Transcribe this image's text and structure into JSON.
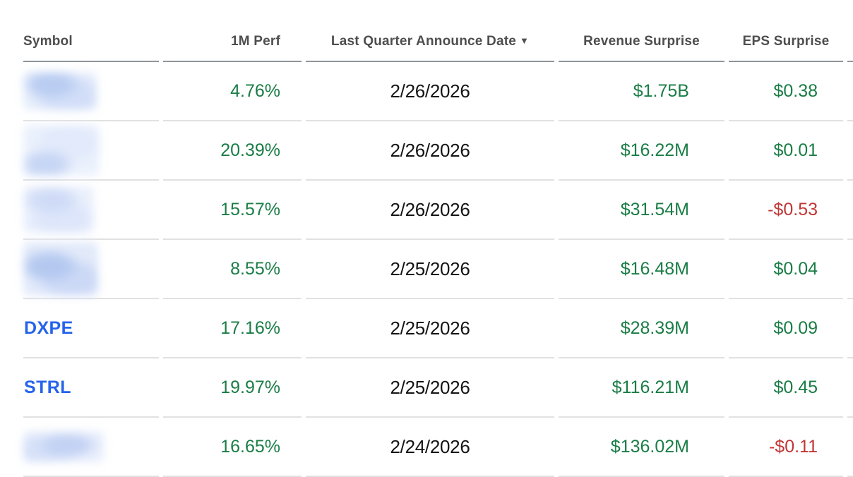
{
  "table": {
    "columns": [
      {
        "id": "symbol",
        "label": "Symbol"
      },
      {
        "id": "perf-1m",
        "label": "1M Perf"
      },
      {
        "id": "announce-date",
        "label": "Last Quarter Announce Date",
        "sort": "desc",
        "sort_icon": "▼"
      },
      {
        "id": "revenue-surprise",
        "label": "Revenue Surprise"
      },
      {
        "id": "eps-surprise",
        "label": "EPS Surprise"
      }
    ],
    "rows": [
      {
        "symbol": "",
        "symbol_blurred": true,
        "perf_1m": "4.76%",
        "announce_date": "2/26/2026",
        "revenue_surprise": "$1.75B",
        "eps_surprise": "$0.38",
        "eps_trend": "up"
      },
      {
        "symbol": "",
        "symbol_blurred": true,
        "perf_1m": "20.39%",
        "announce_date": "2/26/2026",
        "revenue_surprise": "$16.22M",
        "eps_surprise": "$0.01",
        "eps_trend": "up"
      },
      {
        "symbol": "",
        "symbol_blurred": true,
        "perf_1m": "15.57%",
        "announce_date": "2/26/2026",
        "revenue_surprise": "$31.54M",
        "eps_surprise": "-$0.53",
        "eps_trend": "down"
      },
      {
        "symbol": "",
        "symbol_blurred": true,
        "perf_1m": "8.55%",
        "announce_date": "2/25/2026",
        "revenue_surprise": "$16.48M",
        "eps_surprise": "$0.04",
        "eps_trend": "up"
      },
      {
        "symbol": "DXPE",
        "symbol_blurred": false,
        "perf_1m": "17.16%",
        "announce_date": "2/25/2026",
        "revenue_surprise": "$28.39M",
        "eps_surprise": "$0.09",
        "eps_trend": "up"
      },
      {
        "symbol": "STRL",
        "symbol_blurred": false,
        "perf_1m": "19.97%",
        "announce_date": "2/25/2026",
        "revenue_surprise": "$116.21M",
        "eps_surprise": "$0.45",
        "eps_trend": "up"
      },
      {
        "symbol": "",
        "symbol_blurred": true,
        "perf_1m": "16.65%",
        "announce_date": "2/24/2026",
        "revenue_surprise": "$136.02M",
        "eps_surprise": "-$0.11",
        "eps_trend": "down"
      }
    ]
  },
  "colors": {
    "positive": "#1a7d46",
    "negative": "#c23636",
    "symbol_link": "#2563eb",
    "header_text": "#4e4e4e",
    "header_border": "#8f969b",
    "row_divider": "#e1e1e1"
  }
}
